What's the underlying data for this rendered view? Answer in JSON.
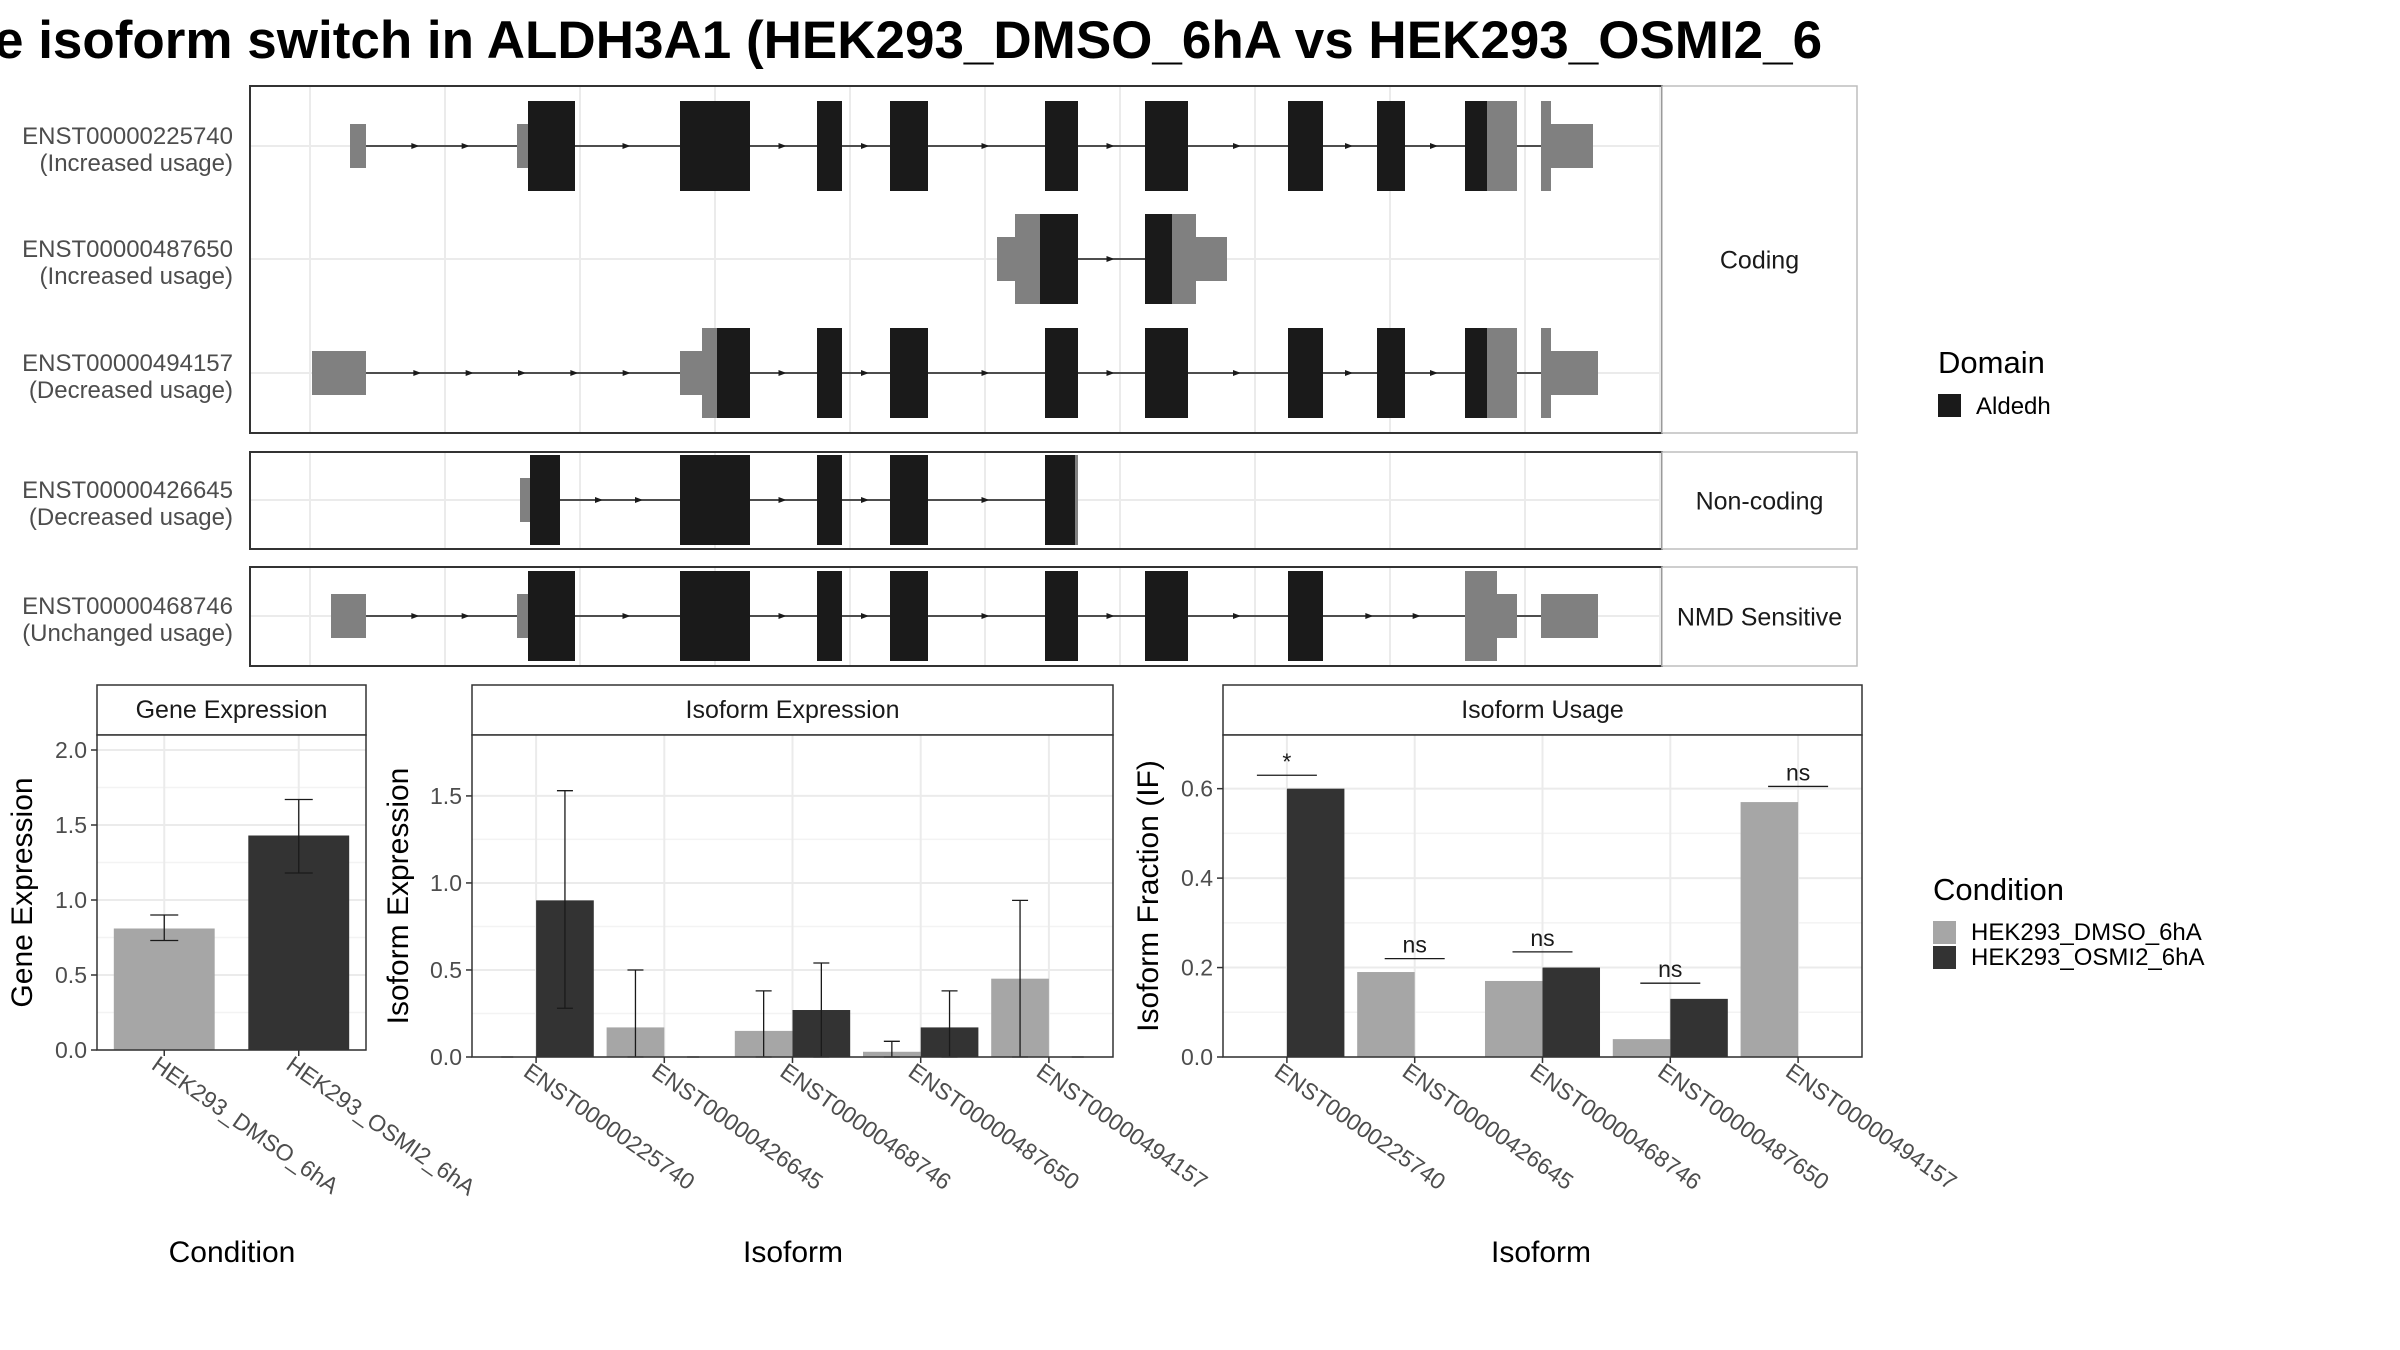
{
  "title": "e isoform switch in ALDH3A1 (HEK293_DMSO_6hA vs HEK293_OSMI2_6",
  "colors": {
    "utr": "#808080",
    "domain": "#1a1a1a",
    "dmso": "#a6a6a6",
    "osmi": "#333333",
    "grid": "#ebebeb",
    "strip": "#ffffff",
    "border": "#333333"
  },
  "transcript_panels": [
    {
      "strip": "Coding",
      "transcripts": [
        {
          "id": "ENST00000225740",
          "usage": "(Increased usage)"
        },
        {
          "id": "ENST00000487650",
          "usage": "(Increased usage)"
        },
        {
          "id": "ENST00000494157",
          "usage": "(Decreased usage)"
        }
      ]
    },
    {
      "strip": "Non-coding",
      "transcripts": [
        {
          "id": "ENST00000426645",
          "usage": "(Decreased usage)"
        }
      ]
    },
    {
      "strip": "NMD Sensitive",
      "transcripts": [
        {
          "id": "ENST00000468746",
          "usage": "(Unchanged usage)"
        }
      ]
    }
  ],
  "domain_legend": {
    "title": "Domain",
    "items": [
      "Aldedh"
    ]
  },
  "condition_legend": {
    "title": "Condition",
    "items": [
      "HEK293_DMSO_6hA",
      "HEK293_OSMI2_6hA"
    ]
  },
  "chart_data": [
    {
      "type": "bar",
      "strip": "Gene Expression",
      "xlabel": "Condition",
      "ylabel": "Gene Expression",
      "ylim": [
        0,
        2.1
      ],
      "yticks": [
        0.0,
        0.5,
        1.0,
        1.5,
        2.0
      ],
      "ytick_labels": [
        "0.0",
        "0.5",
        "1.0",
        "1.5",
        "2.0"
      ],
      "categories": [
        "HEK293_DMSO_6hA",
        "HEK293_OSMI2_6hA"
      ],
      "values": [
        0.81,
        1.43
      ],
      "error": [
        [
          0.73,
          0.9
        ],
        [
          1.18,
          1.67
        ]
      ]
    },
    {
      "type": "bar",
      "strip": "Isoform Expression",
      "xlabel": "Isoform",
      "ylabel": "Isoform Expression",
      "ylim": [
        0,
        1.85
      ],
      "yticks": [
        0.0,
        0.5,
        1.0,
        1.5
      ],
      "ytick_labels": [
        "0.0",
        "0.5",
        "1.0",
        "1.5"
      ],
      "categories": [
        "ENST00000225740",
        "ENST00000426645",
        "ENST00000468746",
        "ENST00000487650",
        "ENST00000494157"
      ],
      "series": [
        {
          "name": "HEK293_DMSO_6hA",
          "values": [
            0.0,
            0.17,
            0.15,
            0.03,
            0.45
          ],
          "error": [
            [
              0,
              0
            ],
            [
              0,
              0.5
            ],
            [
              0,
              0.38
            ],
            [
              0,
              0.09
            ],
            [
              0,
              0.9
            ]
          ]
        },
        {
          "name": "HEK293_OSMI2_6hA",
          "values": [
            0.9,
            0.0,
            0.27,
            0.17,
            0.0
          ],
          "error": [
            [
              0.28,
              1.53
            ],
            [
              0,
              0
            ],
            [
              0,
              0.54
            ],
            [
              0,
              0.38
            ],
            [
              0,
              0
            ]
          ]
        }
      ]
    },
    {
      "type": "bar",
      "strip": "Isoform Usage",
      "xlabel": "Isoform",
      "ylabel": "Isoform Fraction (IF)",
      "ylim": [
        0,
        0.72
      ],
      "yticks": [
        0.0,
        0.2,
        0.4,
        0.6
      ],
      "ytick_labels": [
        "0.0",
        "0.2",
        "0.4",
        "0.6"
      ],
      "categories": [
        "ENST00000225740",
        "ENST00000426645",
        "ENST00000468746",
        "ENST00000487650",
        "ENST00000494157"
      ],
      "series": [
        {
          "name": "HEK293_DMSO_6hA",
          "values": [
            0.0,
            0.19,
            0.17,
            0.04,
            0.57
          ]
        },
        {
          "name": "HEK293_OSMI2_6hA",
          "values": [
            0.6,
            0.0,
            0.2,
            0.13,
            0.0
          ]
        }
      ],
      "significance": [
        {
          "category": "ENST00000225740",
          "label": "*",
          "y": 0.63
        },
        {
          "category": "ENST00000426645",
          "label": "ns",
          "y": 0.22
        },
        {
          "category": "ENST00000468746",
          "label": "ns",
          "y": 0.235
        },
        {
          "category": "ENST00000487650",
          "label": "ns",
          "y": 0.165
        },
        {
          "category": "ENST00000494157",
          "label": "ns",
          "y": 0.605
        }
      ]
    }
  ]
}
